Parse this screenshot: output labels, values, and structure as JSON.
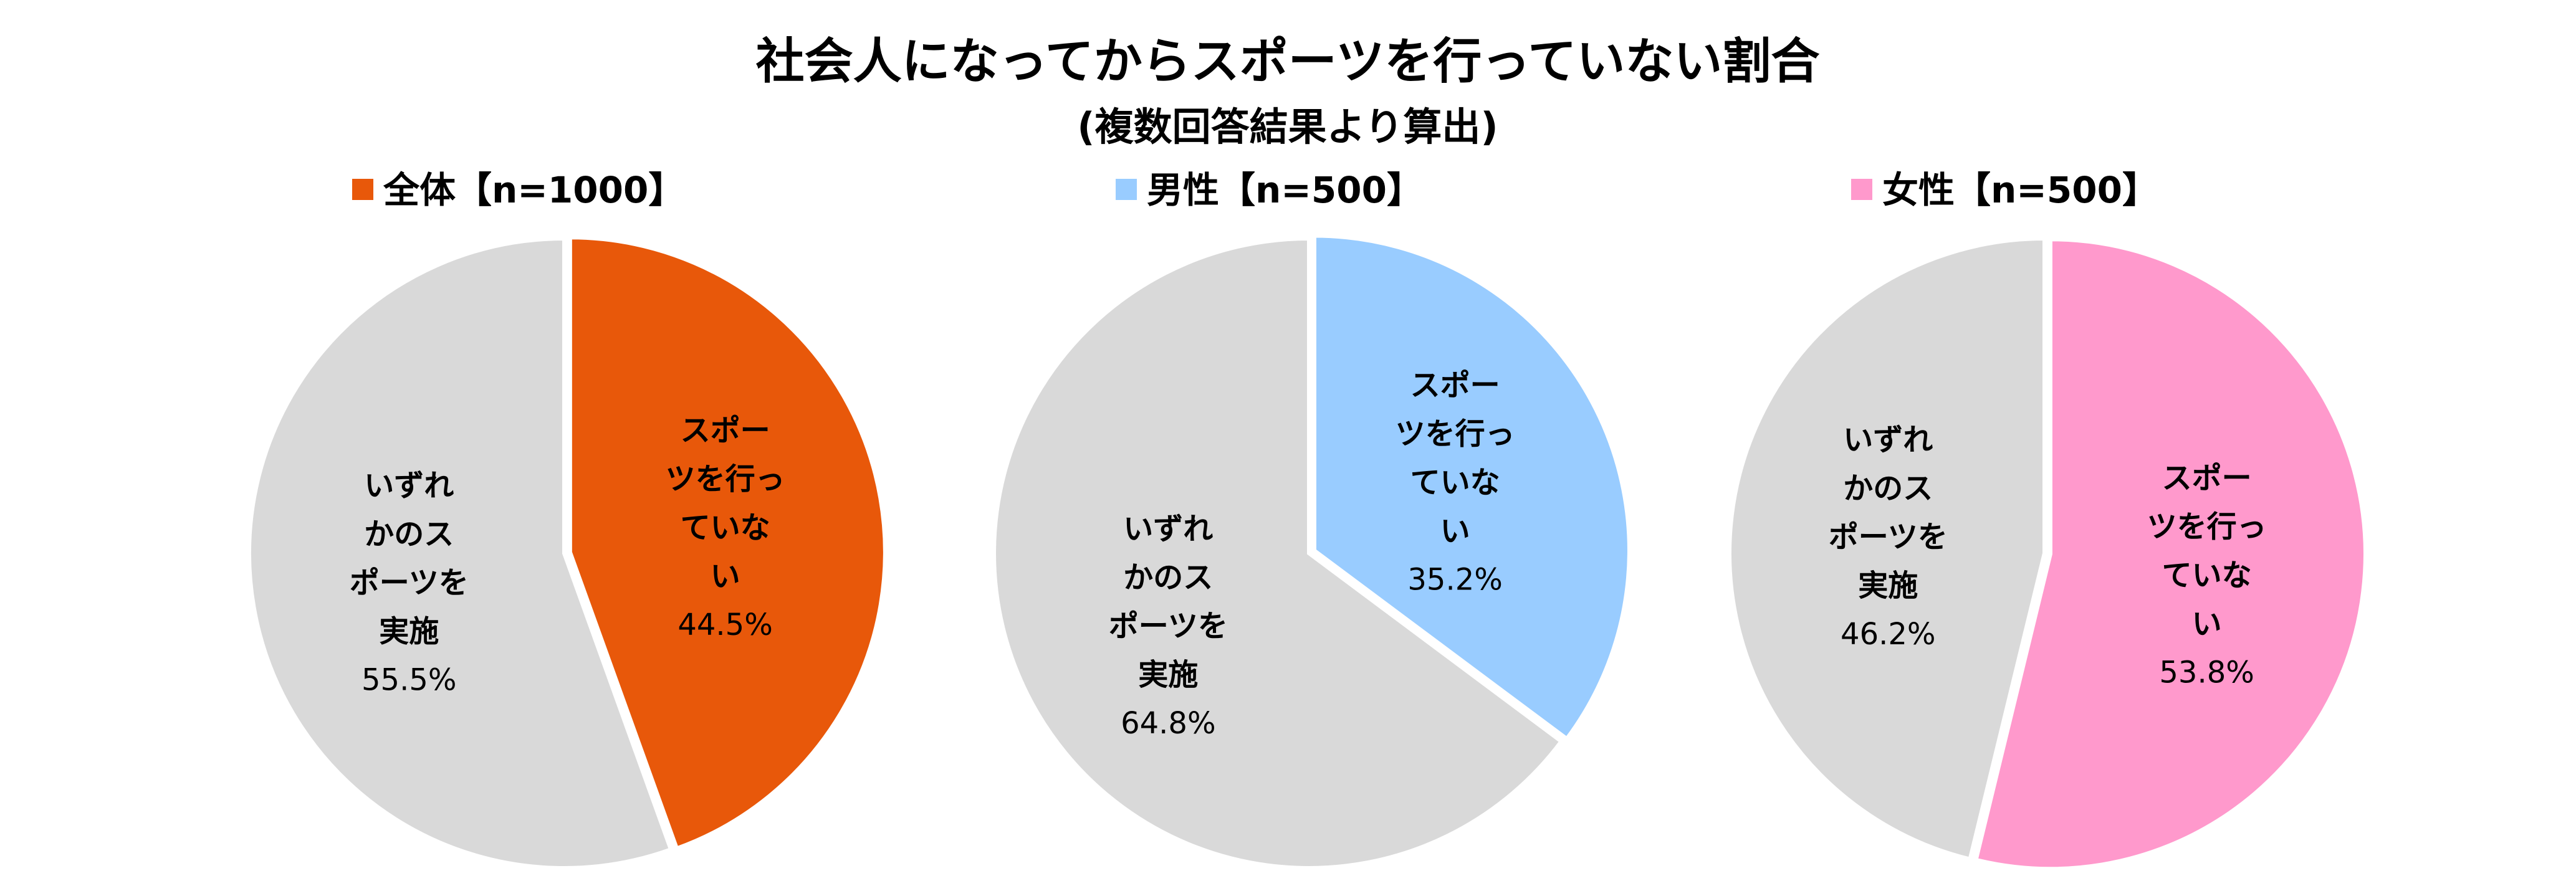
{
  "chart_data": {
    "type": "pie",
    "title": "社会人になってからスポーツを行っていない割合",
    "subtitle": "(複数回答結果より算出)",
    "unit": "%",
    "charts": [
      {
        "legend_label": "全体【n=1000】",
        "accent_color": "#E8580A",
        "slices": [
          {
            "label_lines": [
              "スポー",
              "ツを行っ",
              "ていな",
              "い"
            ],
            "value": 44.5,
            "value_text": "44.5%",
            "color": "#E8580A"
          },
          {
            "label_lines": [
              "いずれ",
              "かのス",
              "ポーツを",
              "実施"
            ],
            "value": 55.5,
            "value_text": "55.5%",
            "color": "#D9D9D9"
          }
        ]
      },
      {
        "legend_label": "男性【n=500】",
        "accent_color": "#99CCFF",
        "slices": [
          {
            "label_lines": [
              "スポー",
              "ツを行っ",
              "ていな",
              "い"
            ],
            "value": 35.2,
            "value_text": "35.2%",
            "color": "#99CCFF"
          },
          {
            "label_lines": [
              "いずれ",
              "かのス",
              "ポーツを",
              "実施"
            ],
            "value": 64.8,
            "value_text": "64.8%",
            "color": "#D9D9D9"
          }
        ]
      },
      {
        "legend_label": "女性【n=500】",
        "accent_color": "#FF99CC",
        "slices": [
          {
            "label_lines": [
              "スポー",
              "ツを行っ",
              "ていな",
              "い"
            ],
            "value": 53.8,
            "value_text": "53.8%",
            "color": "#FF99CC"
          },
          {
            "label_lines": [
              "いずれ",
              "かのス",
              "ポーツを",
              "実施"
            ],
            "value": 46.2,
            "value_text": "46.2%",
            "color": "#D9D9D9"
          }
        ]
      }
    ]
  }
}
